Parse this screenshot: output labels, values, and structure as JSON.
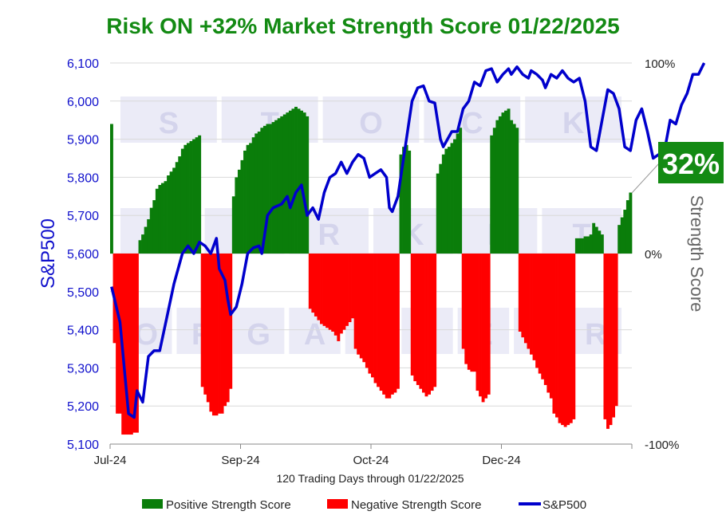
{
  "chart_data": {
    "type": "bar+line",
    "title": "Risk ON +32% Market Strength Score 01/22/2025",
    "title_color": "#138A13",
    "xlabel": "120 Trading Days through 01/22/2025",
    "ylabel_left": "S&P500",
    "ylabel_right": "Strength Score",
    "ylim_left": [
      5100,
      6100
    ],
    "yticks_left": [
      "5,100",
      "5,200",
      "5,300",
      "5,400",
      "5,500",
      "5,600",
      "5,700",
      "5,800",
      "5,900",
      "6,000",
      "6,100"
    ],
    "ylim_right": [
      -100,
      100
    ],
    "yticks_right": [
      "-100%",
      "0%",
      "100%"
    ],
    "xticks": [
      {
        "label": "Jul-24",
        "index": 0
      },
      {
        "label": "Sep-24",
        "index": 30
      },
      {
        "label": "Oct-24",
        "index": 60
      },
      {
        "label": "Dec-24",
        "index": 90
      }
    ],
    "callout": "32%",
    "callout_color": "#138A13",
    "legend": [
      {
        "label": "Positive Strength Score",
        "color": "#0A7D0A",
        "kind": "bar"
      },
      {
        "label": "Negative Strength Score",
        "color": "#FF0000",
        "kind": "bar"
      },
      {
        "label": "S&P500",
        "color": "#0000CC",
        "kind": "line"
      }
    ],
    "watermark": [
      [
        "S",
        "T",
        "O",
        "C",
        "K"
      ],
      [
        "M",
        "A",
        "R",
        "K",
        "E",
        "T"
      ],
      [
        "O",
        "R",
        "G",
        "A",
        "N",
        "I",
        "Z",
        "E",
        "R"
      ]
    ],
    "strength_score": [
      68,
      -47,
      -84,
      -84,
      -95,
      -95,
      -95,
      -95,
      -94,
      -94,
      7,
      10,
      14,
      18,
      24,
      28,
      34,
      36,
      37,
      38,
      41,
      43,
      45,
      48,
      51,
      55,
      57,
      58,
      59,
      60,
      61,
      62,
      -70,
      -74,
      -78,
      -83,
      -85,
      -85,
      -84,
      -84,
      -80,
      -78,
      -71,
      30,
      40,
      44,
      49,
      54,
      57,
      58,
      61,
      63,
      64,
      66,
      67,
      68,
      68,
      69,
      70,
      71,
      72,
      73,
      74,
      75,
      76,
      77,
      76,
      75,
      74,
      72,
      -29,
      -31,
      -33,
      -35,
      -37,
      -38,
      -39,
      -40,
      -41,
      -43,
      -46,
      -42,
      -40,
      -38,
      -36,
      -34,
      -50,
      -53,
      -55,
      -57,
      -60,
      -63,
      -65,
      -68,
      -70,
      -72,
      -74,
      -76,
      -76,
      -74,
      -73,
      -71,
      52,
      56,
      57,
      54,
      -64,
      -67,
      -69,
      -71,
      -73,
      -75,
      -74,
      -72,
      -70,
      42,
      47,
      52,
      55,
      56,
      58,
      60,
      63,
      66,
      -50,
      -58,
      -61,
      -62,
      -62,
      -72,
      -75,
      -78,
      -76,
      -74,
      62,
      66,
      70,
      72,
      74,
      75,
      76,
      70,
      68,
      66,
      -41,
      -44,
      -47,
      -50,
      -53,
      -56,
      -60,
      -63,
      -66,
      -69,
      -73,
      -76,
      -84,
      -86,
      -89,
      -90,
      -91,
      -90,
      -89,
      -87,
      8,
      8,
      8,
      9,
      9,
      10,
      16,
      14,
      12,
      10,
      -87,
      -92,
      -90,
      -86,
      -80,
      15,
      19,
      23,
      28,
      32
    ]
  },
  "sp500": [
    {
      "i": 0,
      "v": 5513
    },
    {
      "i": 3,
      "v": 5420
    },
    {
      "i": 6,
      "v": 5180
    },
    {
      "i": 8,
      "v": 5170
    },
    {
      "i": 9,
      "v": 5240
    },
    {
      "i": 11,
      "v": 5210
    },
    {
      "i": 13,
      "v": 5330
    },
    {
      "i": 15,
      "v": 5345
    },
    {
      "i": 17,
      "v": 5345
    },
    {
      "i": 20,
      "v": 5450
    },
    {
      "i": 22,
      "v": 5520
    },
    {
      "i": 25,
      "v": 5600
    },
    {
      "i": 27,
      "v": 5620
    },
    {
      "i": 29,
      "v": 5600
    },
    {
      "i": 31,
      "v": 5630
    },
    {
      "i": 33,
      "v": 5620
    },
    {
      "i": 35,
      "v": 5600
    },
    {
      "i": 37,
      "v": 5640
    },
    {
      "i": 38,
      "v": 5560
    },
    {
      "i": 40,
      "v": 5530
    },
    {
      "i": 41,
      "v": 5480
    },
    {
      "i": 42,
      "v": 5440
    },
    {
      "i": 44,
      "v": 5460
    },
    {
      "i": 46,
      "v": 5520
    },
    {
      "i": 48,
      "v": 5600
    },
    {
      "i": 50,
      "v": 5615
    },
    {
      "i": 52,
      "v": 5620
    },
    {
      "i": 53,
      "v": 5600
    },
    {
      "i": 55,
      "v": 5700
    },
    {
      "i": 57,
      "v": 5720
    },
    {
      "i": 60,
      "v": 5730
    },
    {
      "i": 62,
      "v": 5750
    },
    {
      "i": 63,
      "v": 5720
    },
    {
      "i": 65,
      "v": 5760
    },
    {
      "i": 67,
      "v": 5780
    },
    {
      "i": 69,
      "v": 5700
    },
    {
      "i": 71,
      "v": 5720
    },
    {
      "i": 73,
      "v": 5690
    },
    {
      "i": 75,
      "v": 5760
    },
    {
      "i": 77,
      "v": 5800
    },
    {
      "i": 79,
      "v": 5810
    },
    {
      "i": 81,
      "v": 5840
    },
    {
      "i": 83,
      "v": 5810
    },
    {
      "i": 85,
      "v": 5840
    },
    {
      "i": 87,
      "v": 5860
    },
    {
      "i": 89,
      "v": 5850
    },
    {
      "i": 91,
      "v": 5800
    },
    {
      "i": 93,
      "v": 5810
    },
    {
      "i": 95,
      "v": 5820
    },
    {
      "i": 97,
      "v": 5800
    },
    {
      "i": 98,
      "v": 5720
    },
    {
      "i": 99,
      "v": 5710
    },
    {
      "i": 101,
      "v": 5750
    },
    {
      "i": 102,
      "v": 5800
    },
    {
      "i": 104,
      "v": 5900
    },
    {
      "i": 106,
      "v": 6000
    },
    {
      "i": 108,
      "v": 6035
    },
    {
      "i": 110,
      "v": 6040
    },
    {
      "i": 112,
      "v": 6000
    },
    {
      "i": 114,
      "v": 5995
    },
    {
      "i": 116,
      "v": 5900
    },
    {
      "i": 117,
      "v": 5880
    },
    {
      "i": 120,
      "v": 5920
    },
    {
      "i": 122,
      "v": 5920
    },
    {
      "i": 124,
      "v": 5980
    },
    {
      "i": 126,
      "v": 6000
    },
    {
      "i": 128,
      "v": 6050
    },
    {
      "i": 130,
      "v": 6040
    },
    {
      "i": 132,
      "v": 6080
    },
    {
      "i": 134,
      "v": 6085
    },
    {
      "i": 136,
      "v": 6050
    },
    {
      "i": 138,
      "v": 6070
    },
    {
      "i": 140,
      "v": 6085
    },
    {
      "i": 141,
      "v": 6070
    },
    {
      "i": 143,
      "v": 6090
    },
    {
      "i": 145,
      "v": 6070
    },
    {
      "i": 147,
      "v": 6060
    },
    {
      "i": 148,
      "v": 6080
    },
    {
      "i": 150,
      "v": 6070
    },
    {
      "i": 152,
      "v": 6055
    },
    {
      "i": 153,
      "v": 6035
    },
    {
      "i": 155,
      "v": 6070
    },
    {
      "i": 157,
      "v": 6060
    },
    {
      "i": 159,
      "v": 6080
    },
    {
      "i": 161,
      "v": 6060
    },
    {
      "i": 163,
      "v": 6050
    },
    {
      "i": 165,
      "v": 6060
    },
    {
      "i": 167,
      "v": 6000
    },
    {
      "i": 169,
      "v": 5880
    },
    {
      "i": 171,
      "v": 5870
    },
    {
      "i": 173,
      "v": 5950
    },
    {
      "i": 175,
      "v": 6030
    },
    {
      "i": 177,
      "v": 6020
    },
    {
      "i": 179,
      "v": 5980
    },
    {
      "i": 181,
      "v": 5880
    },
    {
      "i": 183,
      "v": 5870
    },
    {
      "i": 185,
      "v": 5950
    },
    {
      "i": 187,
      "v": 5980
    },
    {
      "i": 189,
      "v": 5920
    },
    {
      "i": 191,
      "v": 5850
    },
    {
      "i": 193,
      "v": 5860
    },
    {
      "i": 195,
      "v": 5870
    },
    {
      "i": 197,
      "v": 5950
    },
    {
      "i": 199,
      "v": 5940
    },
    {
      "i": 201,
      "v": 5990
    },
    {
      "i": 203,
      "v": 6020
    },
    {
      "i": 205,
      "v": 6070
    },
    {
      "i": 207,
      "v": 6070
    },
    {
      "i": 209,
      "v": 6100
    }
  ]
}
